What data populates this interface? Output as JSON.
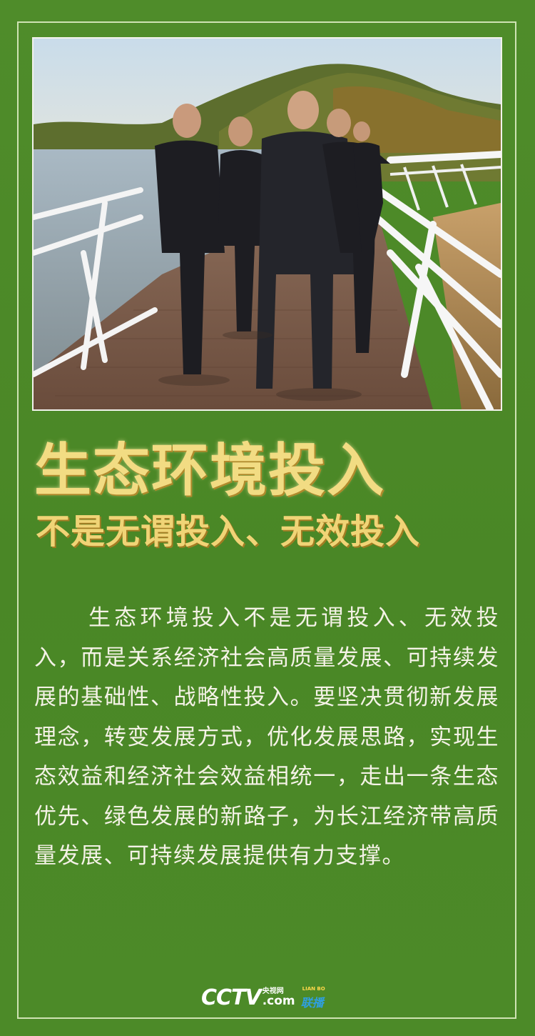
{
  "poster": {
    "title": "生态环境投入",
    "subtitle": "不是无谓投入、无效投入",
    "body": "生态环境投入不是无谓投入、无效投入，而是关系经济社会高质量发展、可持续发展的基础性、战略性投入。要坚决贯彻新发展理念，转变发展方式，优化发展思路，实现生态效益和经济社会效益相统一，走出一条生态优先、绿色发展的新路子，为长江经济带高质量发展、可持续发展提供有力支撑。"
  },
  "photo": {
    "description_icon": "boardwalk-photo"
  },
  "footer": {
    "logo_cctv": "CCTV",
    "logo_cn": "央视网",
    "logo_com": ".com",
    "badge_small": "LIAN BO",
    "badge_big": "联播"
  },
  "colors": {
    "background": "#4e8a2a",
    "title_gold": "#f2dc83",
    "body_text": "#f4f2e6",
    "frame": "#cfe3b4"
  }
}
